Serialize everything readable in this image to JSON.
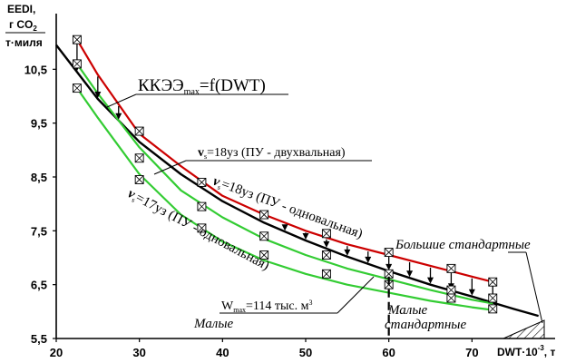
{
  "chart_data": {
    "type": "line",
    "xlim": [
      20,
      80
    ],
    "ylim": [
      5.5,
      11.5
    ],
    "x_ticks": [
      "20",
      "30",
      "40",
      "50",
      "60",
      "70"
    ],
    "y_ticks": [
      "5,5",
      "6,5",
      "7,5",
      "8,5",
      "9,5",
      "10,5"
    ],
    "y_label": {
      "line1": "EEDI,",
      "line2_pre": "г CO",
      "line2_sub": "2",
      "line3": "т·миля"
    },
    "x_label": {
      "pre": "DWT·10",
      "sup": "-3",
      "post": ", т"
    },
    "annotations": {
      "formula_main": "ККЭЭ",
      "formula_sub": "max",
      "formula_tail": "=f(DWT)",
      "twin_shaft_18": "v",
      "twin_shaft_18_sub": "s",
      "twin_shaft_18_tail": "=18уз (ПУ - двухвальная)",
      "single_shaft_18": "v",
      "single_shaft_18_sub": "s",
      "single_shaft_18_tail": "=18уз (ПУ - одновальная)",
      "single_shaft_17": "v",
      "single_shaft_17_sub": "s",
      "single_shaft_17_tail": "=17уз (ПУ - одновальная)",
      "wmax_pre": "W",
      "wmax_sub": "max",
      "wmax_tail": "=114 тыс. м",
      "wmax_sup": "3",
      "small": "Малые",
      "small_standard_1": "Малые",
      "small_standard_2": "стандартные",
      "large_standard": "Большие стандартные"
    },
    "series": [
      {
        "color": "#000000",
        "x": [
          20,
          25,
          30,
          35,
          40,
          45,
          50,
          55,
          60,
          65,
          70,
          75,
          78
        ],
        "y": [
          10.95,
          9.95,
          9.15,
          8.55,
          8.05,
          7.65,
          7.32,
          7.02,
          6.75,
          6.5,
          6.28,
          6.05,
          5.92
        ]
      },
      {
        "color": "#cc0000",
        "x": [
          22.5,
          25,
          30,
          35,
          40,
          45,
          50,
          55,
          60,
          65,
          70,
          72.5
        ],
        "y": [
          11.05,
          10.4,
          9.3,
          8.7,
          8.15,
          7.8,
          7.5,
          7.25,
          7.05,
          6.85,
          6.65,
          6.55
        ],
        "markers": [
          [
            22.5,
            11.05
          ],
          [
            30,
            9.35
          ],
          [
            37.5,
            8.4
          ],
          [
            45,
            7.8
          ],
          [
            52.5,
            7.45
          ],
          [
            60,
            7.1
          ],
          [
            67.5,
            6.8
          ],
          [
            72.5,
            6.55
          ]
        ]
      },
      {
        "color": "#33cc33",
        "x": [
          22.5,
          25,
          30,
          35,
          40,
          45,
          50,
          55,
          60,
          65,
          70,
          72.5
        ],
        "y": [
          10.6,
          10.05,
          9.05,
          8.25,
          7.75,
          7.35,
          7.05,
          6.8,
          6.6,
          6.4,
          6.22,
          6.15
        ],
        "markers": [
          [
            22.5,
            10.6
          ],
          [
            30,
            8.85
          ],
          [
            37.5,
            7.95
          ],
          [
            45,
            7.4
          ],
          [
            52.5,
            7.05
          ],
          [
            60,
            6.7
          ],
          [
            67.5,
            6.4
          ],
          [
            72.5,
            6.25
          ]
        ]
      },
      {
        "color": "#33cc33",
        "x": [
          22.5,
          25,
          30,
          35,
          40,
          45,
          50,
          55,
          60,
          65,
          70,
          72.5
        ],
        "y": [
          10.15,
          9.6,
          8.55,
          7.8,
          7.3,
          6.95,
          6.7,
          6.5,
          6.35,
          6.2,
          6.08,
          6.03
        ],
        "markers": [
          [
            22.5,
            10.15
          ],
          [
            30,
            8.45
          ],
          [
            37.5,
            7.55
          ],
          [
            45,
            7.05
          ],
          [
            52.5,
            6.7
          ],
          [
            60,
            6.5
          ],
          [
            67.5,
            6.25
          ],
          [
            72.5,
            6.05
          ]
        ]
      }
    ],
    "arrows_x": [
      22.5,
      25,
      27.5,
      30,
      32.5,
      35,
      37.5,
      40,
      42.5,
      45,
      47.5,
      50,
      52.5,
      55,
      57.5,
      60,
      62.5,
      65,
      67.5,
      70,
      72.5
    ],
    "divider_x": 60
  }
}
